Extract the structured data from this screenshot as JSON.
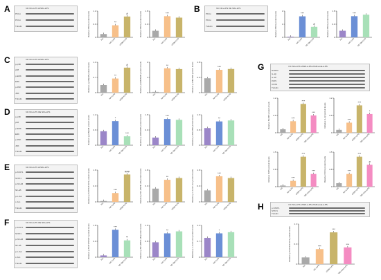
{
  "panels": {
    "A": {
      "label": "A",
      "blot": {
        "header": [
          "NC",
          "NC+LPS",
          "shSIK+LPS"
        ],
        "rows": [
          "PKCα",
          "PKCα",
          "Tubulin"
        ]
      },
      "charts": [
        {
          "ylabel": "Relative PKCα protein levels",
          "categories": [
            "NC",
            "NC+LPS",
            "shSIK+LPS"
          ],
          "values": [
            0.15,
            0.55,
            0.95
          ],
          "sig": [
            "",
            "**",
            "#"
          ],
          "colors": [
            "#a9a9a9",
            "#f7c08a",
            "#c8b46a"
          ],
          "ylim": [
            0,
            1.2
          ]
        },
        {
          "ylabel": "Relative PKCα protein levels",
          "categories": [
            "NC",
            "NC+LPS",
            "shSIK+LPS"
          ],
          "values": [
            0.45,
            1.45,
            1.35
          ],
          "sig": [
            "",
            "***",
            ""
          ],
          "colors": [
            "#a9a9a9",
            "#f7c08a",
            "#c8b46a"
          ],
          "ylim": [
            0,
            1.8
          ]
        }
      ]
    },
    "B": {
      "label": "B",
      "blot": {
        "header": [
          "NC",
          "NC+LPS",
          "OE SIK+LPS"
        ],
        "rows": [
          "PKCα",
          "PKCα",
          "Tubulin"
        ]
      },
      "charts": [
        {
          "ylabel": "Relative PKCα protein levels",
          "categories": [
            "NC",
            "NC+LPS",
            "OE SIK+LPS"
          ],
          "values": [
            0.05,
            1.6,
            0.8
          ],
          "sig": [
            "",
            "***",
            "#"
          ],
          "colors": [
            "#9b86c8",
            "#6b8fd6",
            "#a8e0b8"
          ],
          "ylim": [
            0,
            2.0
          ]
        },
        {
          "ylabel": "Relative PKCα protein levels",
          "categories": [
            "NC",
            "NC+LPS",
            "OE SIK+LPS"
          ],
          "values": [
            0.45,
            1.45,
            1.55
          ],
          "sig": [
            "",
            "***",
            ""
          ],
          "colors": [
            "#9b86c8",
            "#6b8fd6",
            "#a8e0b8"
          ],
          "ylim": [
            0,
            1.8
          ]
        }
      ]
    },
    "C": {
      "label": "C",
      "blot": {
        "header": [
          "NC",
          "NC+LPS",
          "shSIK+LPS"
        ],
        "rows": [
          "p-p38",
          "p38",
          "p-ERK",
          "ERK",
          "p-JNK",
          "JNK",
          "Tubulin"
        ]
      },
      "charts": [
        {
          "ylabel": "Relative p-p38/p38 protein levels",
          "categories": [
            "NC",
            "NC+LPS",
            "shSIK+LPS"
          ],
          "values": [
            0.35,
            0.65,
            1.15
          ],
          "sig": [
            "",
            "**",
            "#"
          ],
          "colors": [
            "#a9a9a9",
            "#f7c08a",
            "#c8b46a"
          ],
          "ylim": [
            0,
            1.4
          ]
        },
        {
          "ylabel": "Relative p-ERK/ERK protein levels",
          "categories": [
            "NC",
            "NC+LPS",
            "shSIK+LPS"
          ],
          "values": [
            0.05,
            1.6,
            1.55
          ],
          "sig": [
            "",
            "**",
            ""
          ],
          "colors": [
            "#a9a9a9",
            "#f7c08a",
            "#c8b46a"
          ],
          "ylim": [
            0,
            2.0
          ]
        },
        {
          "ylabel": "Relative p-JNK/JNK protein levels",
          "categories": [
            "NC",
            "NC+LPS",
            "shSIK+LPS"
          ],
          "values": [
            0.85,
            1.35,
            1.4
          ],
          "sig": [
            "",
            "***",
            ""
          ],
          "colors": [
            "#a9a9a9",
            "#f7c08a",
            "#c8b46a"
          ],
          "ylim": [
            0,
            1.8
          ]
        }
      ]
    },
    "D": {
      "label": "D",
      "blot": {
        "header": [
          "NC",
          "NC+LPS",
          "OE SIK+LPS"
        ],
        "rows": [
          "p-p38",
          "p38",
          "p-ERK",
          "ERK",
          "p-JNK",
          "JNK",
          "Tubulin"
        ]
      },
      "charts": [
        {
          "ylabel": "Relative p-p38/p38 protein levels",
          "categories": [
            "NC",
            "NC+LPS",
            "OE SIK+LPS"
          ],
          "values": [
            0.55,
            0.95,
            0.35
          ],
          "sig": [
            "",
            "*",
            "***"
          ],
          "colors": [
            "#9b86c8",
            "#6b8fd6",
            "#a8e0b8"
          ],
          "ylim": [
            0,
            1.2
          ]
        },
        {
          "ylabel": "Relative p-ERK/ERK protein levels",
          "categories": [
            "NC",
            "NC+LPS",
            "OE SIK+LPS"
          ],
          "values": [
            0.45,
            1.55,
            1.5
          ],
          "sig": [
            "",
            "***",
            ""
          ],
          "colors": [
            "#9b86c8",
            "#6b8fd6",
            "#a8e0b8"
          ],
          "ylim": [
            0,
            1.8
          ]
        },
        {
          "ylabel": "Relative p-JNK/JNK protein levels",
          "categories": [
            "NC",
            "NC+LPS",
            "OE SIK+LPS"
          ],
          "values": [
            0.9,
            1.25,
            1.3
          ],
          "sig": [
            "",
            "**",
            ""
          ],
          "colors": [
            "#9b86c8",
            "#6b8fd6",
            "#a8e0b8"
          ],
          "ylim": [
            0,
            1.6
          ]
        }
      ]
    },
    "E": {
      "label": "E",
      "blot": {
        "header": [
          "NC",
          "NC+LPS",
          "shSIK+LPS"
        ],
        "rows": [
          "p-STAT1",
          "STAT1",
          "p-NF-κB",
          "NF-κB",
          "p-c-Jun",
          "c-Jun",
          "Tubulin"
        ]
      },
      "charts": [
        {
          "ylabel": "Relative p-STAT1/STAT1 protein levels",
          "categories": [
            "NC",
            "NC+LPS",
            "shSIK+LPS"
          ],
          "values": [
            0.05,
            0.5,
            1.55
          ],
          "sig": [
            "",
            "***",
            "###"
          ],
          "colors": [
            "#a9a9a9",
            "#f7c08a",
            "#c8b46a"
          ],
          "ylim": [
            0,
            1.8
          ]
        },
        {
          "ylabel": "Relative p-NF-κB/NF-κB protein levels",
          "categories": [
            "NC",
            "NC+LPS",
            "shSIK+LPS"
          ],
          "values": [
            0.75,
            1.25,
            1.35
          ],
          "sig": [
            "",
            "**",
            ""
          ],
          "colors": [
            "#a9a9a9",
            "#f7c08a",
            "#c8b46a"
          ],
          "ylim": [
            0,
            1.8
          ]
        },
        {
          "ylabel": "Relative p-c-Jun/c-Jun protein levels",
          "categories": [
            "NC",
            "NC+LPS",
            "shSIK+LPS"
          ],
          "values": [
            0.65,
            1.45,
            1.35
          ],
          "sig": [
            "",
            "***",
            ""
          ],
          "colors": [
            "#a9a9a9",
            "#f7c08a",
            "#c8b46a"
          ],
          "ylim": [
            0,
            1.8
          ]
        }
      ]
    },
    "F": {
      "label": "F",
      "blot": {
        "header": [
          "NC",
          "NC+LPS",
          "OE SIK+LPS"
        ],
        "rows": [
          "p-STAT1",
          "STAT1",
          "p-NF-κB",
          "NF-κB",
          "p-c-Jun",
          "c-Jun",
          "Tubulin"
        ]
      },
      "charts": [
        {
          "ylabel": "Relative p-STAT1/STAT1 protein levels",
          "categories": [
            "NC",
            "NC+LPS",
            "OE SIK+LPS"
          ],
          "values": [
            0.1,
            1.55,
            0.95
          ],
          "sig": [
            "",
            "***",
            "**"
          ],
          "colors": [
            "#9b86c8",
            "#6b8fd6",
            "#a8e0b8"
          ],
          "ylim": [
            0,
            1.8
          ]
        },
        {
          "ylabel": "Relative p-NF-κB/NF-κB protein levels",
          "categories": [
            "NC",
            "NC+LPS",
            "OE SIK+LPS"
          ],
          "values": [
            0.75,
            1.2,
            1.3
          ],
          "sig": [
            "",
            "**",
            ""
          ],
          "colors": [
            "#9b86c8",
            "#6b8fd6",
            "#a8e0b8"
          ],
          "ylim": [
            0,
            1.6
          ]
        },
        {
          "ylabel": "Relative p-c-Jun/c-Jun protein levels",
          "categories": [
            "NC",
            "NC+LPS",
            "OE SIK+LPS"
          ],
          "values": [
            0.85,
            1.05,
            1.1
          ],
          "sig": [
            "",
            "*",
            ""
          ],
          "colors": [
            "#9b86c8",
            "#6b8fd6",
            "#a8e0b8"
          ],
          "ylim": [
            0,
            1.4
          ]
        }
      ]
    },
    "G": {
      "label": "G",
      "blot": {
        "header": [
          "NC",
          "NC+LPS",
          "shSIK+LPS",
          "shSIK+Iota+LPS"
        ],
        "rows": [
          "NLRP3",
          "IL-1β",
          "IL-18",
          "iNOS",
          "COX2",
          "Tubulin"
        ]
      },
      "charts": [
        {
          "ylabel": "Relative NLRP3 protein levels",
          "categories": [
            "NC",
            "NC+LPS",
            "shSIK+LPS",
            "shSIK+Iota+LPS"
          ],
          "values": [
            0.12,
            0.4,
            1.0,
            0.6
          ],
          "sig": [
            "",
            "***",
            "***",
            "***"
          ],
          "colors": [
            "#a9a9a9",
            "#f7c08a",
            "#c8b46a",
            "#f48cc2"
          ],
          "ylim": [
            0,
            1.2
          ]
        },
        {
          "ylabel": "Relative IL-1β protein levels",
          "categories": [
            "NC",
            "NC+LPS",
            "shSIK+LPS",
            "shSIK+Iota+LPS"
          ],
          "values": [
            0.1,
            0.35,
            0.95,
            0.65
          ],
          "sig": [
            "",
            "***",
            "***",
            "*"
          ],
          "colors": [
            "#a9a9a9",
            "#f7c08a",
            "#c8b46a",
            "#f48cc2"
          ],
          "ylim": [
            0,
            1.2
          ]
        },
        {
          "ylabel": "Relative iNOS protein levels",
          "categories": [
            "NC",
            "NC+LPS",
            "shSIK+LPS",
            "shSIK+Iota+LPS"
          ],
          "values": [
            0.05,
            0.25,
            1.3,
            0.55
          ],
          "sig": [
            "",
            "***",
            "***",
            "***"
          ],
          "colors": [
            "#a9a9a9",
            "#f7c08a",
            "#c8b46a",
            "#f48cc2"
          ],
          "ylim": [
            0,
            1.5
          ]
        },
        {
          "ylabel": "Relative COX2 protein levels",
          "categories": [
            "NC",
            "NC+LPS",
            "shSIK+LPS",
            "shSIK+Iota+LPS"
          ],
          "values": [
            0.15,
            0.55,
            1.3,
            0.95
          ],
          "sig": [
            "",
            "***",
            "***",
            "#"
          ],
          "colors": [
            "#a9a9a9",
            "#f7c08a",
            "#c8b46a",
            "#f48cc2"
          ],
          "ylim": [
            0,
            1.5
          ]
        }
      ]
    },
    "H": {
      "label": "H",
      "blot": {
        "header": [
          "NC",
          "NC+LPS",
          "shSIK+LPS",
          "shSIK+Iota+LPS"
        ],
        "rows": [
          "p-STAT1",
          "STAT1",
          "Tubulin"
        ]
      },
      "charts": [
        {
          "ylabel": "Relative p-STAT1/STAT1 protein levels",
          "categories": [
            "NC",
            "NC+LPS",
            "shSIK+LPS",
            "shSIK+Iota+LPS"
          ],
          "values": [
            0.2,
            0.45,
            0.95,
            0.5
          ],
          "sig": [
            "",
            "***",
            "***",
            "***"
          ],
          "colors": [
            "#a9a9a9",
            "#f7c08a",
            "#c8b46a",
            "#f48cc2"
          ],
          "ylim": [
            0,
            1.2
          ]
        }
      ]
    }
  },
  "chart_data": [
    {
      "panel": "A",
      "type": "bar",
      "categories": [
        "NC",
        "NC+LPS",
        "shSIK+LPS"
      ],
      "values": [
        0.15,
        0.55,
        0.95
      ],
      "ylabel": "Relative PKCα protein levels"
    },
    {
      "panel": "A",
      "type": "bar",
      "categories": [
        "NC",
        "NC+LPS",
        "shSIK+LPS"
      ],
      "values": [
        0.45,
        1.45,
        1.35
      ],
      "ylabel": "Relative PKCα protein levels"
    },
    {
      "panel": "B",
      "type": "bar",
      "categories": [
        "NC",
        "NC+LPS",
        "OE SIK+LPS"
      ],
      "values": [
        0.05,
        1.6,
        0.8
      ],
      "ylabel": "Relative PKCα protein levels"
    },
    {
      "panel": "B",
      "type": "bar",
      "categories": [
        "NC",
        "NC+LPS",
        "OE SIK+LPS"
      ],
      "values": [
        0.45,
        1.45,
        1.55
      ],
      "ylabel": "Relative PKCα protein levels"
    },
    {
      "panel": "C",
      "type": "bar",
      "categories": [
        "NC",
        "NC+LPS",
        "shSIK+LPS"
      ],
      "values": [
        0.35,
        0.65,
        1.15
      ],
      "ylabel": "Relative p-p38/p38 protein levels"
    },
    {
      "panel": "C",
      "type": "bar",
      "categories": [
        "NC",
        "NC+LPS",
        "shSIK+LPS"
      ],
      "values": [
        0.05,
        1.6,
        1.55
      ],
      "ylabel": "Relative p-ERK/ERK protein levels"
    },
    {
      "panel": "C",
      "type": "bar",
      "categories": [
        "NC",
        "NC+LPS",
        "shSIK+LPS"
      ],
      "values": [
        0.85,
        1.35,
        1.4
      ],
      "ylabel": "Relative p-JNK/JNK protein levels"
    },
    {
      "panel": "D",
      "type": "bar",
      "categories": [
        "NC",
        "NC+LPS",
        "OE SIK+LPS"
      ],
      "values": [
        0.55,
        0.95,
        0.35
      ],
      "ylabel": "Relative p-p38/p38 protein levels"
    },
    {
      "panel": "D",
      "type": "bar",
      "categories": [
        "NC",
        "NC+LPS",
        "OE SIK+LPS"
      ],
      "values": [
        0.45,
        1.55,
        1.5
      ],
      "ylabel": "Relative p-ERK/ERK protein levels"
    },
    {
      "panel": "D",
      "type": "bar",
      "categories": [
        "NC",
        "NC+LPS",
        "OE SIK+LPS"
      ],
      "values": [
        0.9,
        1.25,
        1.3
      ],
      "ylabel": "Relative p-JNK/JNK protein levels"
    },
    {
      "panel": "E",
      "type": "bar",
      "categories": [
        "NC",
        "NC+LPS",
        "shSIK+LPS"
      ],
      "values": [
        0.05,
        0.5,
        1.55
      ],
      "ylabel": "Relative p-STAT1/STAT1 protein levels"
    },
    {
      "panel": "E",
      "type": "bar",
      "categories": [
        "NC",
        "NC+LPS",
        "shSIK+LPS"
      ],
      "values": [
        0.75,
        1.25,
        1.35
      ],
      "ylabel": "Relative p-NF-κB/NF-κB protein levels"
    },
    {
      "panel": "E",
      "type": "bar",
      "categories": [
        "NC",
        "NC+LPS",
        "shSIK+LPS"
      ],
      "values": [
        0.65,
        1.45,
        1.35
      ],
      "ylabel": "Relative p-c-Jun/c-Jun protein levels"
    },
    {
      "panel": "F",
      "type": "bar",
      "categories": [
        "NC",
        "NC+LPS",
        "OE SIK+LPS"
      ],
      "values": [
        0.1,
        1.55,
        0.95
      ],
      "ylabel": "Relative p-STAT1/STAT1 protein levels"
    },
    {
      "panel": "F",
      "type": "bar",
      "categories": [
        "NC",
        "NC+LPS",
        "OE SIK+LPS"
      ],
      "values": [
        0.75,
        1.2,
        1.3
      ],
      "ylabel": "Relative p-NF-κB/NF-κB protein levels"
    },
    {
      "panel": "F",
      "type": "bar",
      "categories": [
        "NC",
        "NC+LPS",
        "OE SIK+LPS"
      ],
      "values": [
        0.85,
        1.05,
        1.1
      ],
      "ylabel": "Relative p-c-Jun/c-Jun protein levels"
    },
    {
      "panel": "G",
      "type": "bar",
      "categories": [
        "NC",
        "NC+LPS",
        "shSIK+LPS",
        "shSIK+Iota+LPS"
      ],
      "values": [
        0.12,
        0.4,
        1.0,
        0.6
      ],
      "ylabel": "Relative NLRP3 protein levels"
    },
    {
      "panel": "G",
      "type": "bar",
      "categories": [
        "NC",
        "NC+LPS",
        "shSIK+LPS",
        "shSIK+Iota+LPS"
      ],
      "values": [
        0.1,
        0.35,
        0.95,
        0.65
      ],
      "ylabel": "Relative IL-1β protein levels"
    },
    {
      "panel": "G",
      "type": "bar",
      "categories": [
        "NC",
        "NC+LPS",
        "shSIK+LPS",
        "shSIK+Iota+LPS"
      ],
      "values": [
        0.05,
        0.25,
        1.3,
        0.55
      ],
      "ylabel": "Relative iNOS protein levels"
    },
    {
      "panel": "G",
      "type": "bar",
      "categories": [
        "NC",
        "NC+LPS",
        "shSIK+LPS",
        "shSIK+Iota+LPS"
      ],
      "values": [
        0.15,
        0.55,
        1.3,
        0.95
      ],
      "ylabel": "Relative COX2 protein levels"
    },
    {
      "panel": "H",
      "type": "bar",
      "categories": [
        "NC",
        "NC+LPS",
        "shSIK+LPS",
        "shSIK+Iota+LPS"
      ],
      "values": [
        0.2,
        0.45,
        0.95,
        0.5
      ],
      "ylabel": "Relative p-STAT1/STAT1 protein levels"
    }
  ]
}
